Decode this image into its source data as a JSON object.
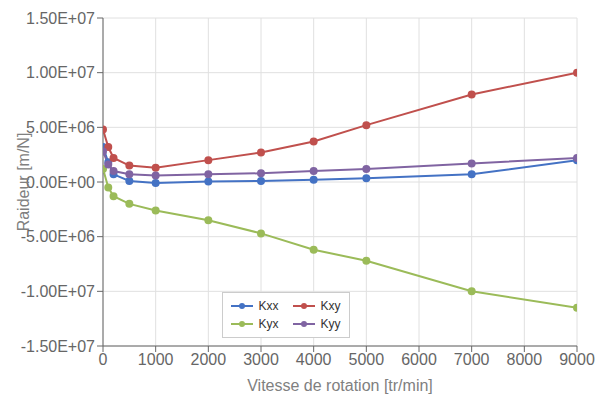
{
  "chart_data": {
    "type": "line",
    "x": [
      0,
      100,
      200,
      500,
      1000,
      2000,
      3000,
      4000,
      5000,
      7000,
      9000
    ],
    "series": [
      {
        "name": "Kxx",
        "color": "#4472C4",
        "values": [
          3200000,
          1800000,
          700000,
          100000,
          -100000,
          50000,
          100000,
          200000,
          350000,
          700000,
          2000000
        ]
      },
      {
        "name": "Kxy",
        "color": "#C0504D",
        "values": [
          4800000,
          3200000,
          2200000,
          1500000,
          1300000,
          2000000,
          2700000,
          3700000,
          5200000,
          8000000,
          10000000
        ]
      },
      {
        "name": "Kyx",
        "color": "#9BBB59",
        "values": [
          1200000,
          -500000,
          -1300000,
          -2000000,
          -2600000,
          -3500000,
          -4700000,
          -6200000,
          -7200000,
          -10000000,
          -11500000
        ]
      },
      {
        "name": "Kyy",
        "color": "#8064A2",
        "values": [
          2800000,
          1600000,
          1000000,
          700000,
          600000,
          700000,
          800000,
          1000000,
          1200000,
          1700000,
          2200000
        ]
      }
    ],
    "xlabel": "Vitesse de rotation [tr/min]",
    "ylabel": "Raideur [m/N]",
    "xlim": [
      0,
      9000
    ],
    "ylim": [
      -15000000,
      15000000
    ],
    "xticks": [
      0,
      1000,
      2000,
      3000,
      4000,
      5000,
      6000,
      7000,
      8000,
      9000
    ],
    "yticks": [
      {
        "value": -15000000,
        "label": "-1.50E+07"
      },
      {
        "value": -10000000,
        "label": "-1.00E+07"
      },
      {
        "value": -5000000,
        "label": "-5.00E+06"
      },
      {
        "value": 0,
        "label": "0.00E+00"
      },
      {
        "value": 5000000,
        "label": "5.00E+06"
      },
      {
        "value": 10000000,
        "label": "1.00E+07"
      },
      {
        "value": 15000000,
        "label": "1.50E+07"
      }
    ],
    "grid": true,
    "legend": "lower left",
    "marker": "circle"
  }
}
